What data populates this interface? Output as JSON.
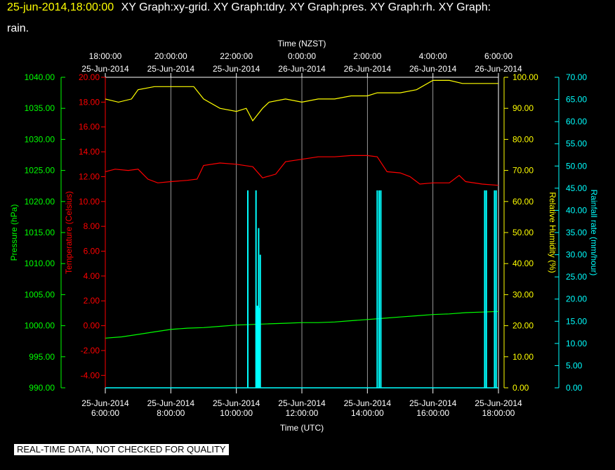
{
  "header": {
    "timestamp": "25-jun-2014,18:00:00",
    "graph_list_line1": "XY Graph:xy-grid.  XY Graph:tdry.  XY Graph:pres.  XY Graph:rh.  XY Graph:",
    "graph_list_line2": "rain."
  },
  "disclaimer": "REAL-TIME DATA, NOT CHECKED FOR QUALITY",
  "colors": {
    "background": "#000000",
    "grid": "#ffffff",
    "pressure": "#00ff00",
    "temperature": "#ff0000",
    "humidity": "#ffff00",
    "rainfall": "#00ffff"
  },
  "chart_data": {
    "type": "line",
    "top_axis": {
      "label": "Time (NZST)",
      "ticks": [
        {
          "time": "18:00:00",
          "date": "25-Jun-2014"
        },
        {
          "time": "20:00:00",
          "date": "25-Jun-2014"
        },
        {
          "time": "22:00:00",
          "date": "25-Jun-2014"
        },
        {
          "time": "0:00:00",
          "date": "26-Jun-2014"
        },
        {
          "time": "2:00:00",
          "date": "26-Jun-2014"
        },
        {
          "time": "4:00:00",
          "date": "26-Jun-2014"
        },
        {
          "time": "6:00:00",
          "date": "26-Jun-2014"
        }
      ]
    },
    "bottom_axis": {
      "label": "Time (UTC)",
      "range_hours": [
        6,
        18
      ],
      "ticks": [
        {
          "hour": 6,
          "date": "25-Jun-2014",
          "time": "6:00:00"
        },
        {
          "hour": 8,
          "date": "25-Jun-2014",
          "time": "8:00:00"
        },
        {
          "hour": 10,
          "date": "25-Jun-2014",
          "time": "10:00:00"
        },
        {
          "hour": 12,
          "date": "25-Jun-2014",
          "time": "12:00:00"
        },
        {
          "hour": 14,
          "date": "25-Jun-2014",
          "time": "14:00:00"
        },
        {
          "hour": 16,
          "date": "25-Jun-2014",
          "time": "16:00:00"
        },
        {
          "hour": 18,
          "date": "25-Jun-2014",
          "time": "18:00:00"
        }
      ]
    },
    "axes": {
      "pressure": {
        "label": "Pressure (hPa)",
        "ylim": [
          990,
          1040
        ],
        "ticks": [
          "990.00",
          "995.00",
          "1000.00",
          "1005.00",
          "1010.00",
          "1015.00",
          "1020.00",
          "1025.00",
          "1030.00",
          "1035.00",
          "1040.00"
        ]
      },
      "temperature": {
        "label": "Temperature (Celsius)",
        "ylim": [
          -5,
          20
        ],
        "ticks": [
          "-4.00",
          "-2.00",
          "0.00",
          "2.00",
          "4.00",
          "6.00",
          "8.00",
          "10.00",
          "12.00",
          "14.00",
          "16.00",
          "18.00",
          "20.00"
        ]
      },
      "humidity": {
        "label": "Relative Humidity (%)",
        "ylim": [
          0,
          100
        ],
        "ticks": [
          "0.00",
          "10.00",
          "20.00",
          "30.00",
          "40.00",
          "50.00",
          "60.00",
          "70.00",
          "80.00",
          "90.00",
          "100.00"
        ]
      },
      "rainfall": {
        "label": "Rainfall rate (mm/hour)",
        "ylim": [
          0,
          70
        ],
        "ticks": [
          "0.00",
          "5.00",
          "10.00",
          "15.00",
          "20.00",
          "25.00",
          "30.00",
          "35.00",
          "40.00",
          "45.00",
          "50.00",
          "55.00",
          "60.00",
          "65.00",
          "70.00"
        ]
      }
    },
    "series": [
      {
        "name": "pres",
        "axis": "pressure",
        "x": [
          6.0,
          6.5,
          7.0,
          7.5,
          8.0,
          8.5,
          9.0,
          9.5,
          10.0,
          10.5,
          11.0,
          11.5,
          12.0,
          12.5,
          13.0,
          13.5,
          14.0,
          14.5,
          15.0,
          15.5,
          16.0,
          16.5,
          17.0,
          17.5,
          18.0
        ],
        "y": [
          998.0,
          998.2,
          998.6,
          999.0,
          999.4,
          999.6,
          999.7,
          999.9,
          1000.1,
          1000.2,
          1000.3,
          1000.4,
          1000.5,
          1000.5,
          1000.6,
          1000.8,
          1001.0,
          1001.2,
          1001.4,
          1001.6,
          1001.8,
          1001.9,
          1002.1,
          1002.2,
          1002.3
        ]
      },
      {
        "name": "tdry",
        "axis": "temperature",
        "x": [
          6.0,
          6.3,
          6.7,
          7.0,
          7.3,
          7.6,
          8.0,
          8.5,
          8.8,
          9.0,
          9.5,
          10.0,
          10.5,
          10.8,
          11.2,
          11.5,
          12.0,
          12.5,
          13.0,
          13.5,
          14.0,
          14.3,
          14.6,
          15.0,
          15.3,
          15.6,
          16.0,
          16.5,
          16.8,
          17.0,
          17.5,
          18.0
        ],
        "y": [
          12.4,
          12.6,
          12.5,
          12.6,
          11.8,
          11.5,
          11.6,
          11.7,
          11.8,
          12.9,
          13.1,
          13.0,
          12.8,
          11.9,
          12.2,
          13.2,
          13.4,
          13.6,
          13.6,
          13.7,
          13.7,
          13.6,
          12.4,
          12.3,
          12.0,
          11.4,
          11.5,
          11.5,
          12.1,
          11.6,
          11.4,
          11.3
        ]
      },
      {
        "name": "rh",
        "axis": "humidity",
        "x": [
          6.0,
          6.4,
          6.8,
          7.0,
          7.5,
          8.0,
          8.7,
          9.0,
          9.5,
          10.0,
          10.3,
          10.5,
          10.8,
          11.0,
          11.5,
          12.0,
          12.5,
          13.0,
          13.5,
          14.0,
          14.3,
          14.6,
          15.0,
          15.5,
          16.0,
          16.5,
          16.9,
          17.2,
          17.5,
          18.0
        ],
        "y": [
          93,
          92,
          93,
          96,
          97,
          97,
          97,
          93,
          90,
          89,
          90,
          86,
          90,
          92,
          93,
          92,
          93,
          93,
          94,
          94,
          95,
          95,
          95,
          96,
          99,
          99,
          98,
          98,
          98,
          98
        ]
      }
    ],
    "rain_bars": [
      {
        "x": 10.35,
        "value": 44.5
      },
      {
        "x": 10.6,
        "value": 44.5
      },
      {
        "x": 10.64,
        "value": 18.5
      },
      {
        "x": 10.68,
        "value": 36
      },
      {
        "x": 10.7,
        "value": 18
      },
      {
        "x": 10.73,
        "value": 30
      },
      {
        "x": 14.3,
        "value": 44.5
      },
      {
        "x": 14.36,
        "value": 44.5
      },
      {
        "x": 14.41,
        "value": 44.5
      },
      {
        "x": 17.58,
        "value": 44.5
      },
      {
        "x": 17.63,
        "value": 44.5
      },
      {
        "x": 17.88,
        "value": 44.5
      },
      {
        "x": 17.93,
        "value": 44.5
      }
    ]
  }
}
